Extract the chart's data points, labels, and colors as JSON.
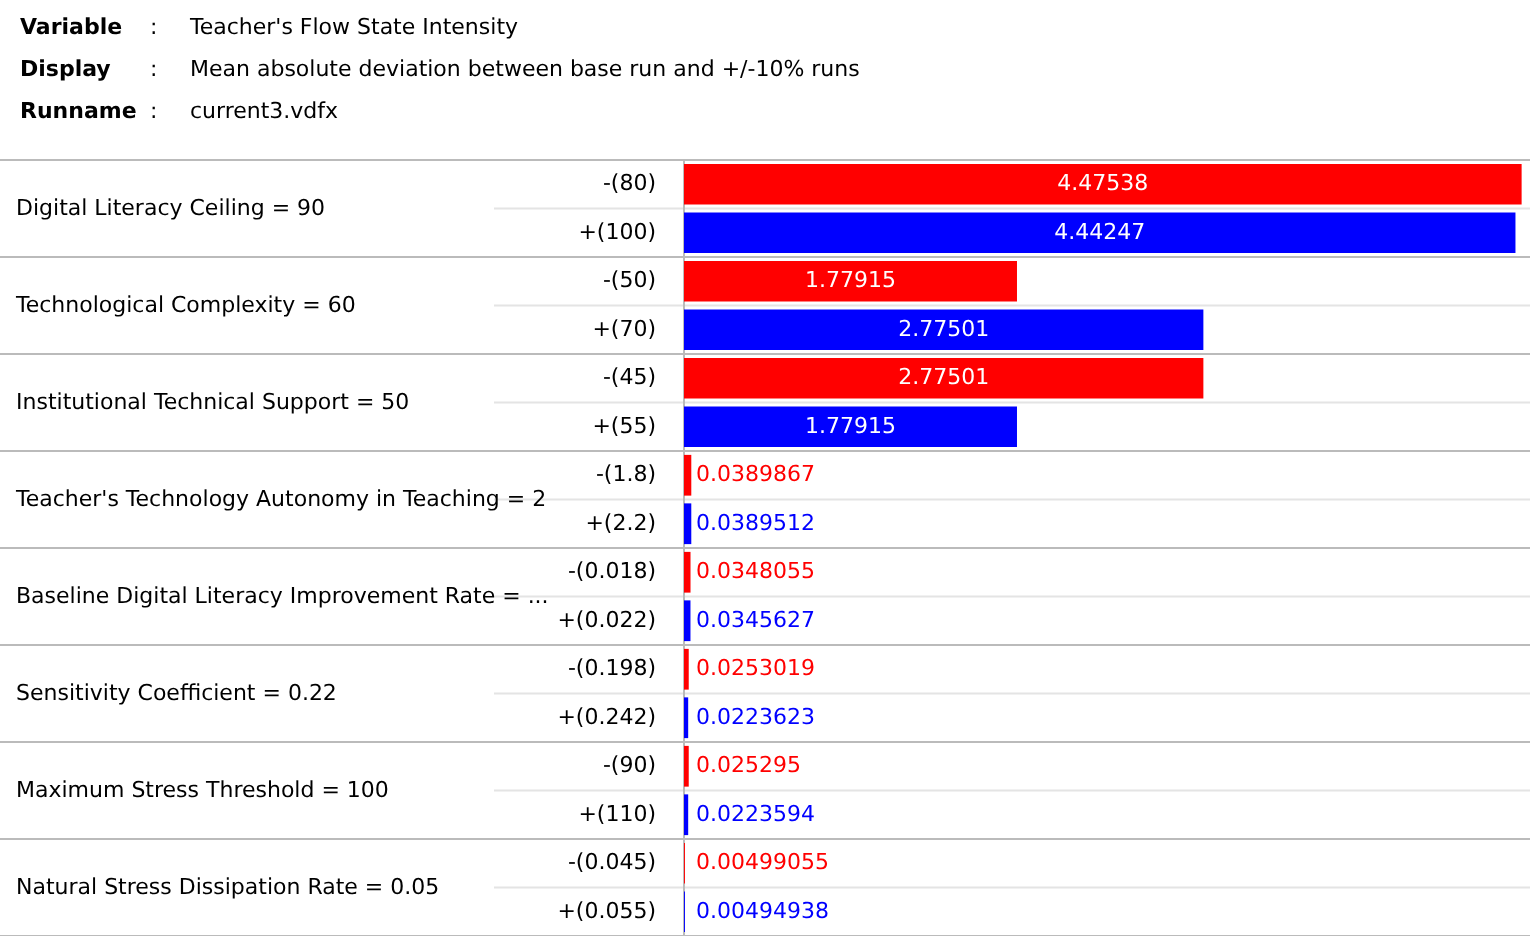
{
  "chart_data": {
    "type": "bar",
    "orientation": "horizontal",
    "data_labels": true,
    "grid": "y",
    "categories": [
      "-(80)",
      "+(100)",
      "-(50)",
      "+(70)",
      "-(45)",
      "+(55)",
      "-(1.8)",
      "+(2.2)",
      "-(0.018)",
      "+(0.022)",
      "-(0.198)",
      "+(0.242)",
      "-(90)",
      "+(110)",
      "-(0.045)",
      "+(0.055)"
    ],
    "values": [
      4.47538,
      4.44247,
      1.77915,
      2.77501,
      2.77501,
      1.77915,
      0.0389867,
      0.0389512,
      0.0348055,
      0.0345627,
      0.0253019,
      0.0223623,
      0.025295,
      0.0223594,
      0.00499055,
      0.00494938
    ],
    "colors": [
      "#ff0000",
      "#0000ff",
      "#ff0000",
      "#0000ff",
      "#ff0000",
      "#0000ff",
      "#ff0000",
      "#0000ff",
      "#ff0000",
      "#0000ff",
      "#ff0000",
      "#0000ff",
      "#ff0000",
      "#0000ff",
      "#ff0000",
      "#0000ff"
    ],
    "annotations": [
      "Variable",
      ":",
      "Teacher's Flow State Intensity",
      "Display",
      ":",
      "Mean absolute deviation between base run and +/-10% runs",
      "Runname",
      ":",
      "current3.vdfx",
      "Digital Literacy Ceiling = 90",
      "Technological Complexity = 60",
      "Institutional Technical Support = 50",
      "Teacher's Technology Autonomy in Teaching = 2",
      "Baseline Digital Literacy Improvement Rate = ...",
      "Sensitivity Coefficient = 0.22",
      "Maximum Stress Threshold = 100",
      "Natural Stress Dissipation Rate = 0.05"
    ]
  }
}
